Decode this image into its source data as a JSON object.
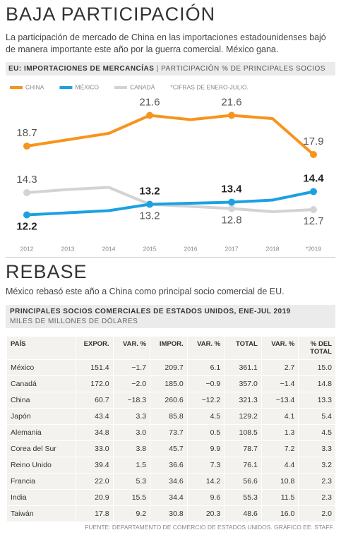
{
  "header": {
    "title": "BAJA PARTICIPACIÓN",
    "text": "La participación de mercado de China en las importaciones estadounidenses bajó de manera importante este año por la guerra comercial. México gana."
  },
  "chart_data": {
    "type": "line",
    "title": "EU: IMPORTACIONES DE MERCANCÍAS",
    "subtitle": "PARTICIPACIÓN % DE PRINCIPALES SOCIOS",
    "note": "*CIFRAS DE ENERO-JULIO.",
    "categories": [
      "2012",
      "2013",
      "2014",
      "2015",
      "2016",
      "2017",
      "2018",
      "*2019"
    ],
    "series": [
      {
        "name": "CHINA",
        "color": "#f7941d",
        "values": [
          18.7,
          19.3,
          19.9,
          21.6,
          21.2,
          21.6,
          21.3,
          17.9
        ],
        "value_labels": [
          "18.7",
          null,
          null,
          "21.6",
          null,
          "21.6",
          null,
          "17.9"
        ]
      },
      {
        "name": "MÉXICO",
        "color": "#1ba1e2",
        "values": [
          12.2,
          12.4,
          12.6,
          13.2,
          13.3,
          13.4,
          13.6,
          14.4
        ],
        "value_labels": [
          "12.2",
          null,
          null,
          "13.2",
          null,
          "13.4",
          null,
          "14.4"
        ]
      },
      {
        "name": "CANADÁ",
        "color": "#d3d3d3",
        "values": [
          14.3,
          14.6,
          14.8,
          13.2,
          13.0,
          12.8,
          12.5,
          12.7
        ],
        "value_labels": [
          "14.3",
          null,
          null,
          "13.2",
          null,
          "12.8",
          null,
          "12.7"
        ]
      }
    ],
    "ylim": [
      11.5,
      22.5
    ]
  },
  "section2": {
    "title": "REBASE",
    "text": "México rebasó este año a China como principal socio comercial de EU."
  },
  "table": {
    "title": "PRINCIPALES SOCIOS COMERCIALES DE ESTADOS UNIDOS, ENE-JUL 2019",
    "subtitle": "MILES DE MILLONES DE DÓLARES",
    "columns": [
      "PAÍS",
      "EXPOR.",
      "VAR. %",
      "IMPOR.",
      "VAR. %",
      "TOTAL",
      "VAR. %",
      "% DEL TOTAL"
    ],
    "rows": [
      [
        "México",
        "151.4",
        "−1.7",
        "209.7",
        "6.1",
        "361.1",
        "2.7",
        "15.0"
      ],
      [
        "Canadá",
        "172.0",
        "−2.0",
        "185.0",
        "−0.9",
        "357.0",
        "−1.4",
        "14.8"
      ],
      [
        "China",
        "60.7",
        "−18.3",
        "260.6",
        "−12.2",
        "321.3",
        "−13.4",
        "13.3"
      ],
      [
        "Japón",
        "43.4",
        "3.3",
        "85.8",
        "4.5",
        "129.2",
        "4.1",
        "5.4"
      ],
      [
        "Alemania",
        "34.8",
        "3.0",
        "73.7",
        "0.5",
        "108.5",
        "1.3",
        "4.5"
      ],
      [
        "Corea del Sur",
        "33.0",
        "3.8",
        "45.7",
        "9.9",
        "78.7",
        "7.2",
        "3.3"
      ],
      [
        "Reino Unido",
        "39.4",
        "1.5",
        "36.6",
        "7.3",
        "76.1",
        "4.4",
        "3.2"
      ],
      [
        "Francia",
        "22.0",
        "5.3",
        "34.6",
        "14.2",
        "56.6",
        "10.8",
        "2.3"
      ],
      [
        "India",
        "20.9",
        "15.5",
        "34.4",
        "9.6",
        "55.3",
        "11.5",
        "2.3"
      ],
      [
        "Taiwán",
        "17.8",
        "9.2",
        "30.8",
        "20.3",
        "48.6",
        "16.0",
        "2.0"
      ]
    ]
  },
  "source": "FUENTE: DEPARTAMENTO DE COMERCIO DE ESTADOS UNIDOS. GRÁFICO EE: STAFF."
}
